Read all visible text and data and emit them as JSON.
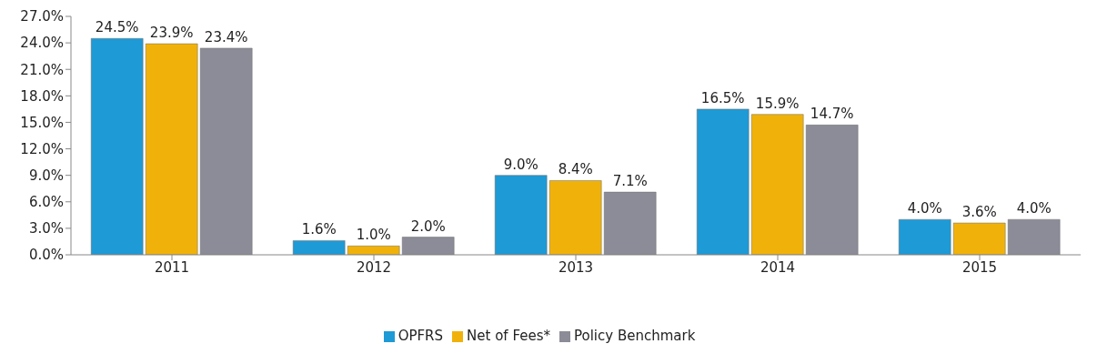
{
  "chart_data": {
    "type": "bar",
    "categories": [
      "2011",
      "2012",
      "2013",
      "2014",
      "2015"
    ],
    "series": [
      {
        "name": "OPFRS",
        "color": "#1e9ad6",
        "values": [
          24.5,
          1.6,
          9.0,
          16.5,
          4.0
        ],
        "value_labels": [
          "24.5%",
          "1.6%",
          "9.0%",
          "16.5%",
          "4.0%"
        ]
      },
      {
        "name": "Net of Fees*",
        "color": "#f0b20a",
        "values": [
          23.9,
          1.0,
          8.4,
          15.9,
          3.6
        ],
        "value_labels": [
          "23.9%",
          "1.0%",
          "8.4%",
          "15.9%",
          "3.6%"
        ]
      },
      {
        "name": "Policy Benchmark",
        "color": "#8c8c98",
        "values": [
          23.4,
          2.0,
          7.1,
          14.7,
          4.0
        ],
        "value_labels": [
          "23.4%",
          "2.0%",
          "7.1%",
          "14.7%",
          "4.0%"
        ]
      }
    ],
    "ylim": [
      0,
      27
    ],
    "yticks": [
      {
        "value": 0,
        "label": "0.0%"
      },
      {
        "value": 3,
        "label": "3.0%"
      },
      {
        "value": 6,
        "label": "6.0%"
      },
      {
        "value": 9,
        "label": "9.0%"
      },
      {
        "value": 12,
        "label": "12.0%"
      },
      {
        "value": 15,
        "label": "15.0%"
      },
      {
        "value": 18,
        "label": "18.0%"
      },
      {
        "value": 21,
        "label": "21.0%"
      },
      {
        "value": 24,
        "label": "24.0%"
      },
      {
        "value": 27,
        "label": "27.0%"
      }
    ],
    "grid": false,
    "legend": "bottom"
  }
}
